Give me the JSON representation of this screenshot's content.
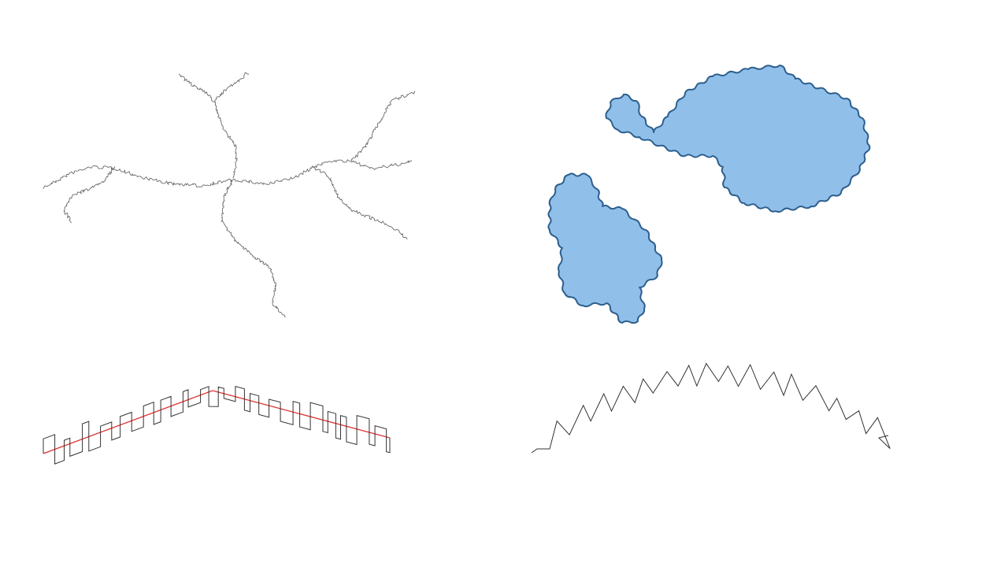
{
  "colors": {
    "background": "#ffffff",
    "wiggly_stroke": "#6b6b6b",
    "square_wave_stroke": "#333333",
    "baseline_stroke": "#e03030",
    "zigzag_stroke": "#333333",
    "blob_fill": "#90c0ea",
    "blob_stroke": "#2d5f8d"
  },
  "panels": [
    {
      "name": "wiggly-branching-lines",
      "icon": "none"
    },
    {
      "name": "blue-blob-shapes",
      "icon": "none"
    },
    {
      "name": "square-wave-line",
      "icon": "none"
    },
    {
      "name": "zigzag-line",
      "icon": "none"
    }
  ]
}
